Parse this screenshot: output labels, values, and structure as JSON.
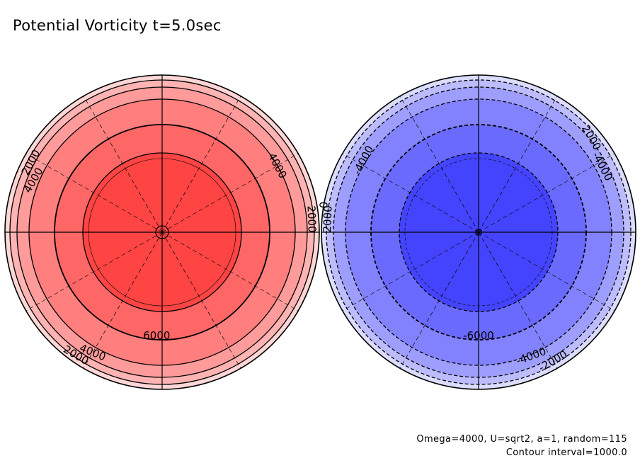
{
  "title": "Potential Vorticity t=5.0sec",
  "footer": {
    "params": "Omega=4000, U=sqrt2, a=1, random=115",
    "interval": "Contour interval=1000.0"
  },
  "chart_data": {
    "type": "polar-filled-contour",
    "contour_interval": 1000.0,
    "contour_levels": [
      0,
      1000,
      2000,
      3000,
      4000,
      5000,
      6000
    ],
    "panels": [
      {
        "name": "left",
        "sign": "positive",
        "color": "#ff4444",
        "fill_colors": [
          "#ffd6d6",
          "#ffb3b3",
          "#ff9b9b",
          "#ff7e7e",
          "#ff6666",
          "#ff5353",
          "#ff4444"
        ],
        "line_style": "solid",
        "labels": [
          "2000",
          "4000",
          "4000",
          "2000",
          "6000",
          "4000",
          "2000"
        ]
      },
      {
        "name": "right",
        "sign": "negative",
        "color": "#4444ff",
        "fill_colors": [
          "#dcdcff",
          "#bcbcff",
          "#9e9eff",
          "#8282ff",
          "#6a6aff",
          "#5555ff",
          "#4444ff"
        ],
        "line_style": "dashed",
        "labels": [
          "-4000",
          "2000",
          "0",
          "2000",
          "-4000",
          "-6000",
          "-4000",
          "-2000"
        ]
      }
    ]
  }
}
